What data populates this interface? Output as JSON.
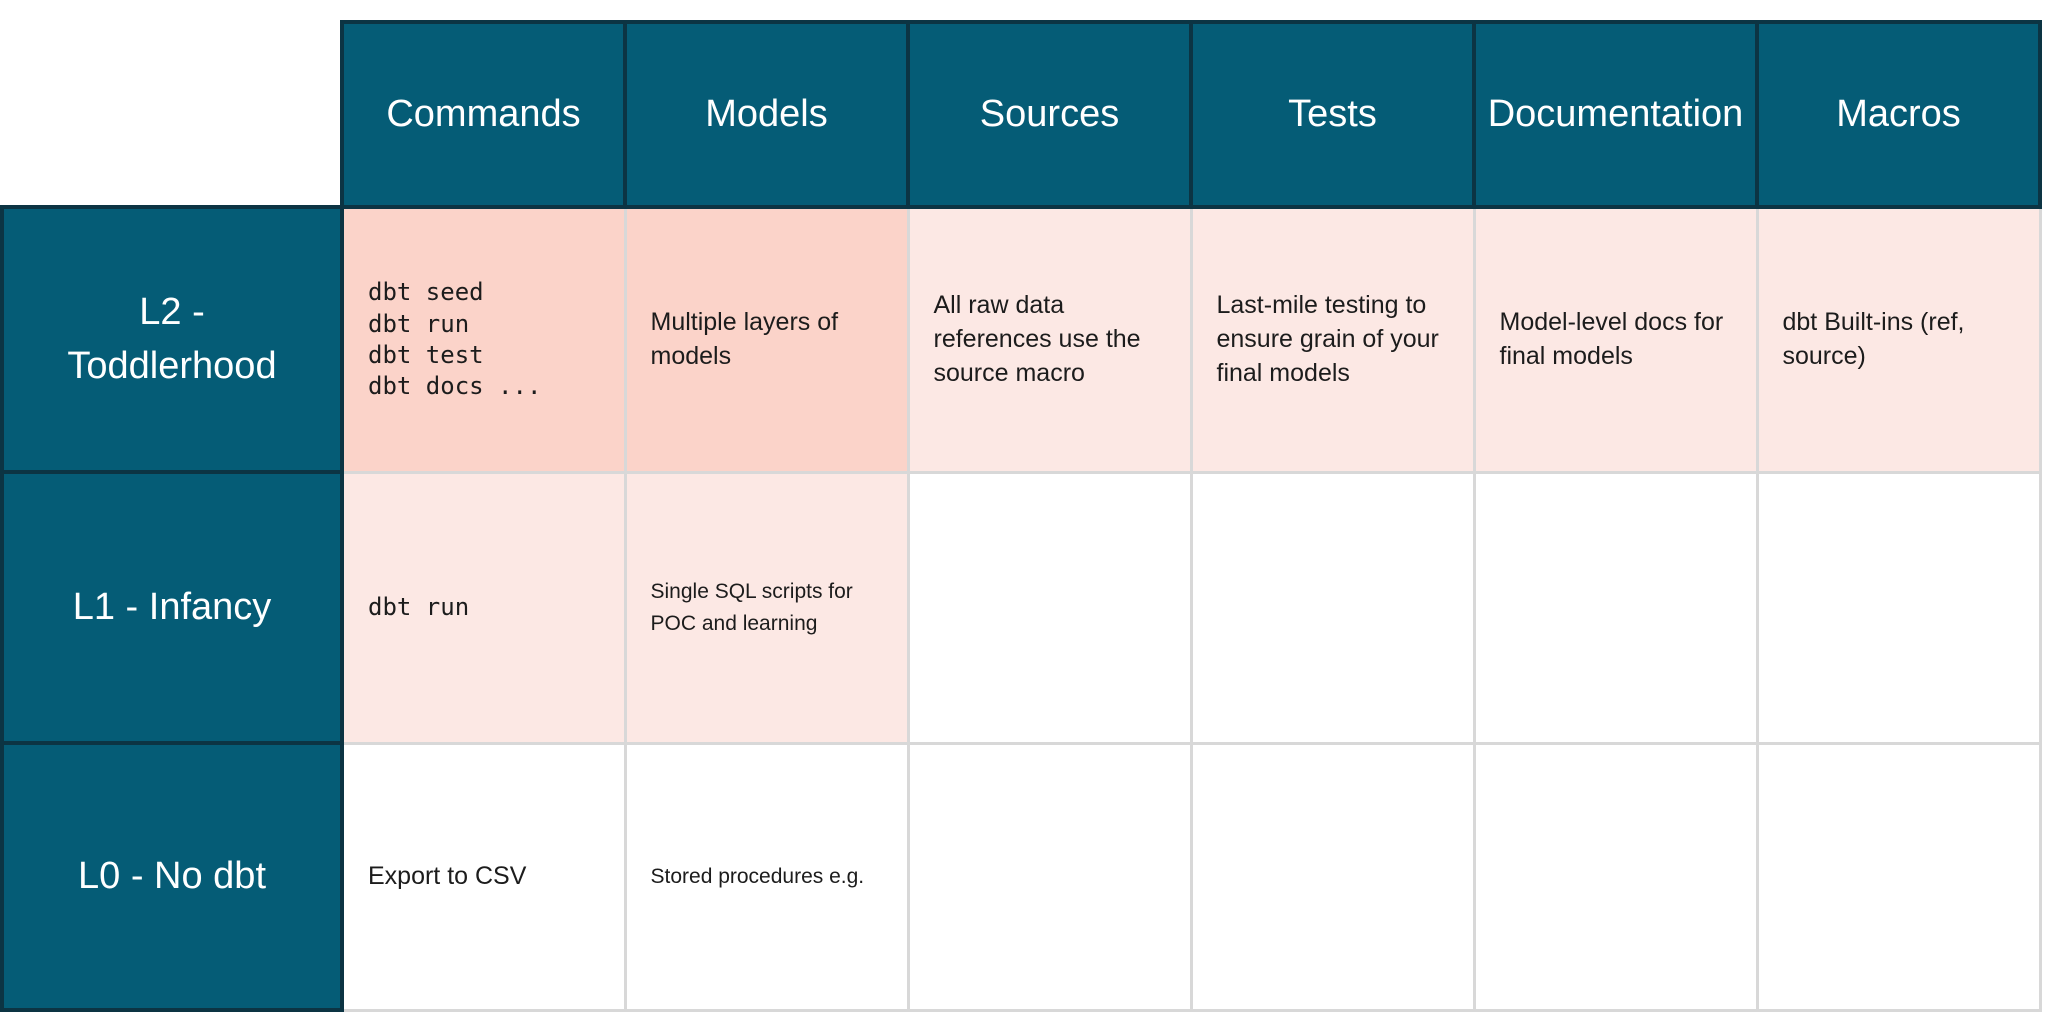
{
  "table": {
    "columns": [
      "Commands",
      "Models",
      "Sources",
      "Tests",
      "Documentation",
      "Macros"
    ],
    "rows": [
      {
        "label": "L2 - Toddlerhood",
        "cells": {
          "commands": "dbt seed\ndbt run\ndbt test\ndbt docs ...",
          "models": "Multiple layers of models",
          "sources": "All raw data references use the source macro",
          "tests": "Last-mile testing to ensure grain of your final models",
          "documentation": "Model-level docs for final models",
          "macros": "dbt Built-ins (ref, source)"
        }
      },
      {
        "label": "L1 - Infancy",
        "cells": {
          "commands": "dbt run",
          "models": "Single SQL scripts for POC and learning",
          "sources": "",
          "tests": "",
          "documentation": "",
          "macros": ""
        }
      },
      {
        "label": "L0 - No dbt",
        "cells": {
          "commands": "Export to CSV",
          "models": "Stored procedures e.g.",
          "sources": "",
          "tests": "",
          "documentation": "",
          "macros": ""
        }
      }
    ],
    "palette": {
      "header_bg": "#055C76",
      "header_border": "#0C3443",
      "highlight_strong": "#FBD3C9",
      "highlight_light": "#FCE8E4",
      "grid_border": "#D8D8D8",
      "header_text": "#FFFFFF",
      "cell_text": "#1C1C1C"
    }
  }
}
